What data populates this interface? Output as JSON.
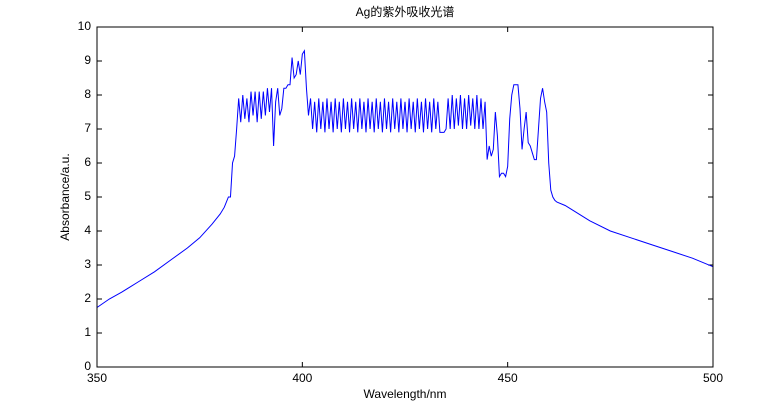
{
  "chart_data": {
    "type": "line",
    "title": "Ag的紫外吸收光谱",
    "xlabel": "Wavelength/nm",
    "ylabel": "Absorbance/a.u.",
    "x": [
      350,
      353,
      356,
      360,
      364,
      368,
      372,
      375,
      378,
      380,
      381,
      382,
      382.5,
      383,
      383.5,
      384,
      384.5,
      385,
      385.5,
      386,
      386.5,
      387,
      387.5,
      388,
      388.5,
      389,
      389.5,
      390,
      390.5,
      391,
      391.5,
      392,
      392.5,
      393,
      393.5,
      394,
      394.5,
      395,
      395.5,
      396,
      396.5,
      397,
      397.5,
      398,
      398.5,
      399,
      399.5,
      400,
      400.5,
      401,
      401.5,
      402,
      402.5,
      403,
      403.5,
      404,
      404.5,
      405,
      405.5,
      406,
      406.5,
      407,
      407.5,
      408,
      408.5,
      409,
      409.5,
      410,
      410.5,
      411,
      411.5,
      412,
      412.5,
      413,
      413.5,
      414,
      414.5,
      415,
      415.5,
      416,
      416.5,
      417,
      417.5,
      418,
      418.5,
      419,
      419.5,
      420,
      420.5,
      421,
      421.5,
      422,
      422.5,
      423,
      423.5,
      424,
      424.5,
      425,
      425.5,
      426,
      426.5,
      427,
      427.5,
      428,
      428.5,
      429,
      429.5,
      430,
      430.5,
      431,
      431.5,
      432,
      432.5,
      433,
      433.5,
      434,
      434.5,
      435,
      435.5,
      436,
      436.5,
      437,
      437.5,
      438,
      438.5,
      439,
      439.5,
      440,
      440.5,
      441,
      441.5,
      442,
      442.5,
      443,
      443.5,
      444,
      444.5,
      445,
      445.5,
      446,
      446.5,
      447,
      447.5,
      448,
      448.5,
      449,
      449.5,
      450,
      450.5,
      451,
      451.5,
      452,
      452.5,
      453,
      453.5,
      454,
      454.5,
      455,
      455.5,
      456,
      456.5,
      457,
      457.5,
      458,
      458.5,
      459,
      459.5,
      460,
      460.5,
      461,
      461.5,
      462,
      464,
      466,
      468,
      470,
      475,
      480,
      485,
      490,
      495,
      500
    ],
    "values": [
      1.75,
      2.0,
      2.2,
      2.5,
      2.8,
      3.15,
      3.5,
      3.8,
      4.2,
      4.5,
      4.7,
      5.0,
      5.0,
      6.0,
      6.2,
      7.0,
      7.9,
      7.2,
      8.0,
      7.3,
      7.9,
      7.2,
      8.1,
      7.4,
      8.1,
      7.2,
      8.1,
      7.3,
      8.1,
      7.4,
      8.2,
      7.5,
      8.2,
      6.5,
      7.8,
      8.2,
      7.4,
      7.6,
      8.2,
      8.2,
      8.3,
      8.3,
      9.1,
      8.5,
      8.6,
      9.0,
      8.6,
      9.2,
      9.3,
      8.2,
      7.4,
      7.9,
      7.0,
      7.8,
      6.9,
      7.9,
      7.0,
      7.8,
      6.9,
      7.9,
      7.0,
      7.8,
      6.9,
      7.9,
      7.0,
      7.8,
      6.9,
      7.9,
      7.0,
      7.8,
      6.9,
      7.9,
      7.0,
      7.8,
      6.9,
      7.9,
      7.0,
      7.8,
      6.9,
      7.9,
      7.0,
      7.8,
      6.9,
      7.9,
      7.0,
      7.8,
      6.9,
      7.9,
      7.0,
      7.8,
      6.9,
      7.9,
      7.0,
      7.8,
      6.9,
      7.9,
      7.0,
      7.8,
      6.9,
      7.9,
      7.0,
      7.8,
      6.9,
      7.9,
      7.0,
      7.8,
      6.9,
      7.9,
      7.0,
      7.8,
      6.9,
      7.9,
      7.0,
      7.8,
      6.9,
      6.9,
      6.9,
      7.0,
      7.9,
      7.0,
      8.0,
      7.0,
      7.9,
      7.1,
      8.0,
      7.0,
      7.9,
      7.0,
      8.0,
      7.1,
      7.9,
      7.0,
      8.0,
      7.0,
      7.9,
      7.0,
      7.8,
      6.1,
      6.5,
      6.2,
      6.4,
      7.5,
      6.8,
      5.6,
      5.7,
      5.7,
      5.6,
      5.9,
      7.3,
      8.0,
      8.3,
      8.3,
      8.3,
      7.6,
      6.4,
      7.0,
      7.5,
      6.6,
      6.5,
      6.3,
      6.1,
      6.1,
      7.0,
      7.9,
      8.2,
      7.8,
      7.5,
      6.0,
      5.2,
      5.0,
      4.9,
      4.85,
      4.75,
      4.6,
      4.45,
      4.3,
      4.0,
      3.8,
      3.6,
      3.4,
      3.2,
      2.95
    ],
    "color": "#0000ff",
    "xlim": [
      350,
      500
    ],
    "xticks": [
      350,
      400,
      450,
      500
    ],
    "ylim": [
      0,
      10
    ],
    "yticks": [
      0,
      1,
      2,
      3,
      4,
      5,
      6,
      7,
      8,
      9,
      10
    ],
    "grid": false
  }
}
